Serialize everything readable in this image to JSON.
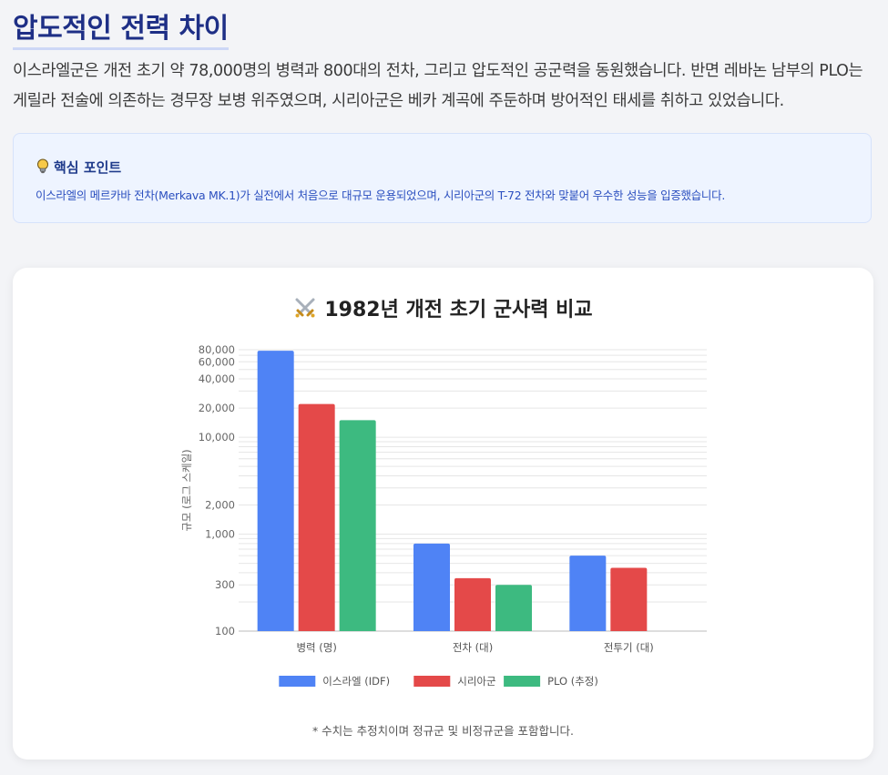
{
  "heading": "압도적인 전력 차이",
  "intro": "이스라엘군은 개전 초기 약 78,000명의 병력과 800대의 전차, 그리고 압도적인 공군력을 동원했습니다. 반면 레바논 남부의 PLO는 게릴라 전술에 의존하는 경무장 보병 위주였으며, 시리아군은 베카 계곡에 주둔하며 방어적인 태세를 취하고 있었습니다.",
  "callout": {
    "icon": "lightbulb-icon",
    "title": "핵심 포인트",
    "text": "이스라엘의 메르카바 전차(Merkava MK.1)가 실전에서 처음으로 대규모 운용되었으며, 시리아군의 T-72 전차와 맞붙어 우수한 성능을 입증했습니다."
  },
  "chart_card": {
    "icon": "crossed-swords-icon",
    "footnote": "* 수치는 추정치이며 정규군 및 비정규군을 포함합니다."
  },
  "chart_data": {
    "type": "bar",
    "title": "1982년 개전 초기 군사력 비교",
    "ylabel": "규모 (로그 스케일)",
    "xlabel": "",
    "yscale": "log",
    "ylim": [
      100,
      80000
    ],
    "yticks": [
      100,
      300,
      1000,
      2000,
      10000,
      20000,
      40000,
      60000,
      80000
    ],
    "ytick_labels": [
      "100",
      "300",
      "1,000",
      "2,000",
      "10,000",
      "20,000",
      "40,000",
      "60,000",
      "80,000"
    ],
    "gridlines": [
      100,
      200,
      300,
      400,
      500,
      600,
      700,
      800,
      900,
      1000,
      2000,
      3000,
      4000,
      5000,
      6000,
      7000,
      8000,
      9000,
      10000,
      20000,
      30000,
      40000,
      50000,
      60000,
      70000,
      80000
    ],
    "grid": true,
    "legend_position": "bottom",
    "categories": [
      "병력 (명)",
      "전차 (대)",
      "전투기 (대)"
    ],
    "series": [
      {
        "name": "이스라엘 (IDF)",
        "color": "#4f83f5",
        "values": [
          78000,
          800,
          600
        ]
      },
      {
        "name": "시리아군",
        "color": "#e44949",
        "values": [
          22000,
          352,
          450
        ]
      },
      {
        "name": "PLO (추정)",
        "color": "#3dba80",
        "values": [
          15000,
          300,
          null
        ]
      }
    ]
  }
}
